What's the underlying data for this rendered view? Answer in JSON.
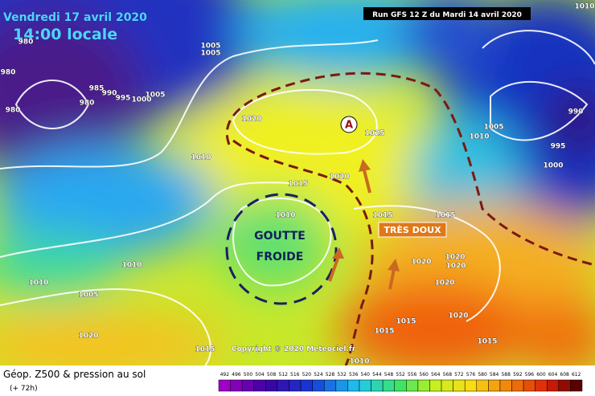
{
  "header": {
    "date": "Vendredi 17 avril 2020",
    "time": "14:00 locale",
    "run": "Run GFS 12 Z du Mardi 14 avril 2020"
  },
  "annotations": {
    "high": "A",
    "cold_drop": [
      "GOUTTE",
      "FROIDE"
    ],
    "warm": "TRÈS DOUX"
  },
  "copyright": "Copyright © 2020 Meteociel.fr",
  "footer": {
    "title": "Géop. Z500 & pression au sol",
    "lead": "(+ 72h)"
  },
  "isobars": [
    1005,
    1005,
    980,
    980,
    980,
    985,
    990,
    995,
    1000,
    1005,
    980,
    1020,
    1025,
    1010,
    1020,
    1015,
    1010,
    1010,
    1010,
    1005,
    1020,
    1015,
    1015,
    1015,
    1020,
    1020,
    1020,
    1020,
    1020,
    1015,
    1015,
    1010,
    1015,
    990,
    1005,
    1010,
    995,
    1000,
    1010
  ],
  "colorbar": {
    "ticks": [
      492,
      496,
      500,
      504,
      508,
      512,
      516,
      520,
      524,
      528,
      532,
      536,
      540,
      544,
      548,
      552,
      556,
      560,
      564,
      568,
      572,
      576,
      580,
      584,
      588,
      592,
      596,
      600,
      604,
      608,
      612
    ]
  }
}
